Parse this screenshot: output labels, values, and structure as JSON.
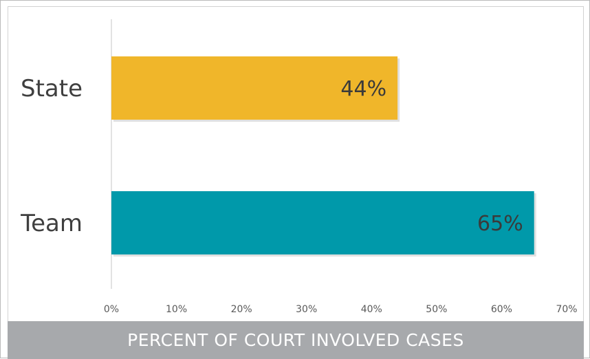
{
  "caption": "PERCENT OF COURT INVOLVED CASES",
  "chart_data": {
    "type": "bar",
    "orientation": "horizontal",
    "categories": [
      "State",
      "Team"
    ],
    "values": [
      44,
      65
    ],
    "data_labels": [
      "44%",
      "65%"
    ],
    "bar_colors": [
      "#f0b62a",
      "#0099aa"
    ],
    "xlim": [
      0,
      70
    ],
    "x_ticks": [
      0,
      10,
      20,
      30,
      40,
      50,
      60,
      70
    ],
    "x_tick_labels": [
      "0%",
      "10%",
      "20%",
      "30%",
      "40%",
      "50%",
      "60%",
      "70%"
    ],
    "grid": false,
    "legend": "none"
  }
}
